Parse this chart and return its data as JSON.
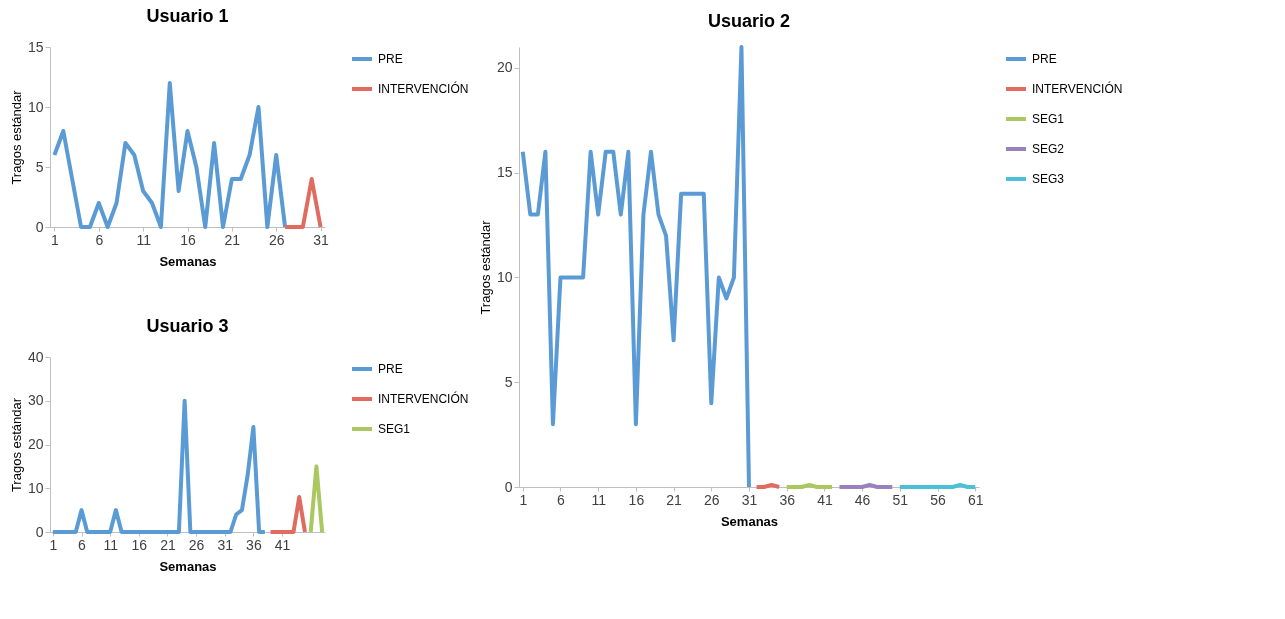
{
  "chart_data": [
    {
      "type": "line",
      "title": "Usuario 1",
      "xlabel": "Semanas",
      "ylabel": "Tragos estándar",
      "xlim": [
        0.5,
        31.5
      ],
      "xticks": [
        1,
        6,
        11,
        16,
        21,
        26,
        31
      ],
      "ylim": [
        0,
        15
      ],
      "yticks": [
        0,
        5,
        10,
        15
      ],
      "legend": "right",
      "series": [
        {
          "name": "PRE",
          "color": "#5b9bd5",
          "x": [
            1,
            2,
            3,
            4,
            5,
            6,
            7,
            8,
            9,
            10,
            11,
            12,
            13,
            14,
            15,
            16,
            17,
            18,
            19,
            20,
            21,
            22,
            23,
            24,
            25,
            26,
            27
          ],
          "values": [
            6,
            8,
            4,
            0,
            0,
            2,
            0,
            2,
            7,
            6,
            3,
            2,
            0,
            12,
            3,
            8,
            5,
            0,
            7,
            0,
            4,
            4,
            6,
            10,
            0,
            6,
            0
          ]
        },
        {
          "name": "INTERVENCIÓN",
          "color": "#e06b5e",
          "x": [
            27,
            28,
            29,
            30,
            31
          ],
          "values": [
            0,
            0,
            0,
            4,
            0
          ]
        }
      ]
    },
    {
      "type": "line",
      "title": "Usuario 3",
      "xlabel": "Semanas",
      "ylabel": "Tragos estándar",
      "xlim": [
        0.5,
        48.5
      ],
      "xticks": [
        1,
        6,
        11,
        16,
        21,
        26,
        31,
        36,
        41
      ],
      "ylim": [
        0,
        40
      ],
      "yticks": [
        0,
        10,
        20,
        30,
        40
      ],
      "legend": "right",
      "series": [
        {
          "name": "PRE",
          "color": "#5b9bd5",
          "x": [
            1,
            2,
            3,
            4,
            5,
            6,
            7,
            8,
            9,
            10,
            11,
            12,
            13,
            14,
            15,
            16,
            17,
            18,
            19,
            20,
            21,
            22,
            23,
            24,
            25,
            26,
            27,
            28,
            29,
            30,
            31,
            32,
            33,
            34,
            35,
            36,
            37,
            38
          ],
          "values": [
            0,
            0,
            0,
            0,
            0,
            5,
            0,
            0,
            0,
            0,
            0,
            5,
            0,
            0,
            0,
            0,
            0,
            0,
            0,
            0,
            0,
            0,
            0,
            30,
            0,
            0,
            0,
            0,
            0,
            0,
            0,
            0,
            4,
            5,
            13,
            24,
            0,
            0
          ]
        },
        {
          "name": "INTERVENCIÓN",
          "color": "#e06b5e",
          "x": [
            39,
            40,
            41,
            42,
            43,
            44,
            45
          ],
          "values": [
            0,
            0,
            0,
            0,
            0,
            8,
            0
          ]
        },
        {
          "name": "SEG1",
          "color": "#a9c85f",
          "x": [
            46,
            47,
            48
          ],
          "values": [
            0,
            15,
            0
          ]
        }
      ]
    },
    {
      "type": "line",
      "title": "Usuario 2",
      "xlabel": "Semanas",
      "ylabel": "Tragos estándar",
      "xlim": [
        0.5,
        61.5
      ],
      "xticks": [
        1,
        6,
        11,
        16,
        21,
        26,
        31,
        36,
        41,
        46,
        51,
        56,
        61
      ],
      "ylim": [
        0,
        21
      ],
      "yticks": [
        0,
        5,
        10,
        15,
        20
      ],
      "legend": "right",
      "series": [
        {
          "name": "PRE",
          "color": "#5b9bd5",
          "x": [
            1,
            2,
            3,
            4,
            5,
            6,
            7,
            8,
            9,
            10,
            11,
            12,
            13,
            14,
            15,
            16,
            17,
            18,
            19,
            20,
            21,
            22,
            23,
            24,
            25,
            26,
            27,
            28,
            29,
            30,
            31
          ],
          "values": [
            16,
            13,
            13,
            16,
            3,
            10,
            10,
            10,
            10,
            16,
            13,
            16,
            16,
            13,
            16,
            3,
            13,
            16,
            13,
            12,
            7,
            14,
            14,
            14,
            14,
            4,
            10,
            9,
            10,
            21,
            0
          ]
        },
        {
          "name": "INTERVENCIÓN",
          "color": "#e06b5e",
          "x": [
            32,
            33,
            34,
            35
          ],
          "values": [
            0,
            0,
            0.1,
            0
          ]
        },
        {
          "name": "SEG1",
          "color": "#a9c85f",
          "x": [
            36,
            37,
            38,
            39,
            40,
            41,
            42
          ],
          "values": [
            0,
            0,
            0,
            0.1,
            0,
            0,
            0
          ]
        },
        {
          "name": "SEG2",
          "color": "#9b80be",
          "x": [
            43,
            44,
            45,
            46,
            47,
            48,
            49,
            50
          ],
          "values": [
            0,
            0,
            0,
            0,
            0.1,
            0,
            0,
            0
          ]
        },
        {
          "name": "SEG3",
          "color": "#4bc0d6",
          "x": [
            51,
            52,
            53,
            54,
            55,
            56,
            57,
            58,
            59,
            60,
            61
          ],
          "values": [
            0,
            0,
            0,
            0,
            0,
            0,
            0,
            0,
            0.1,
            0,
            0
          ]
        }
      ]
    }
  ]
}
